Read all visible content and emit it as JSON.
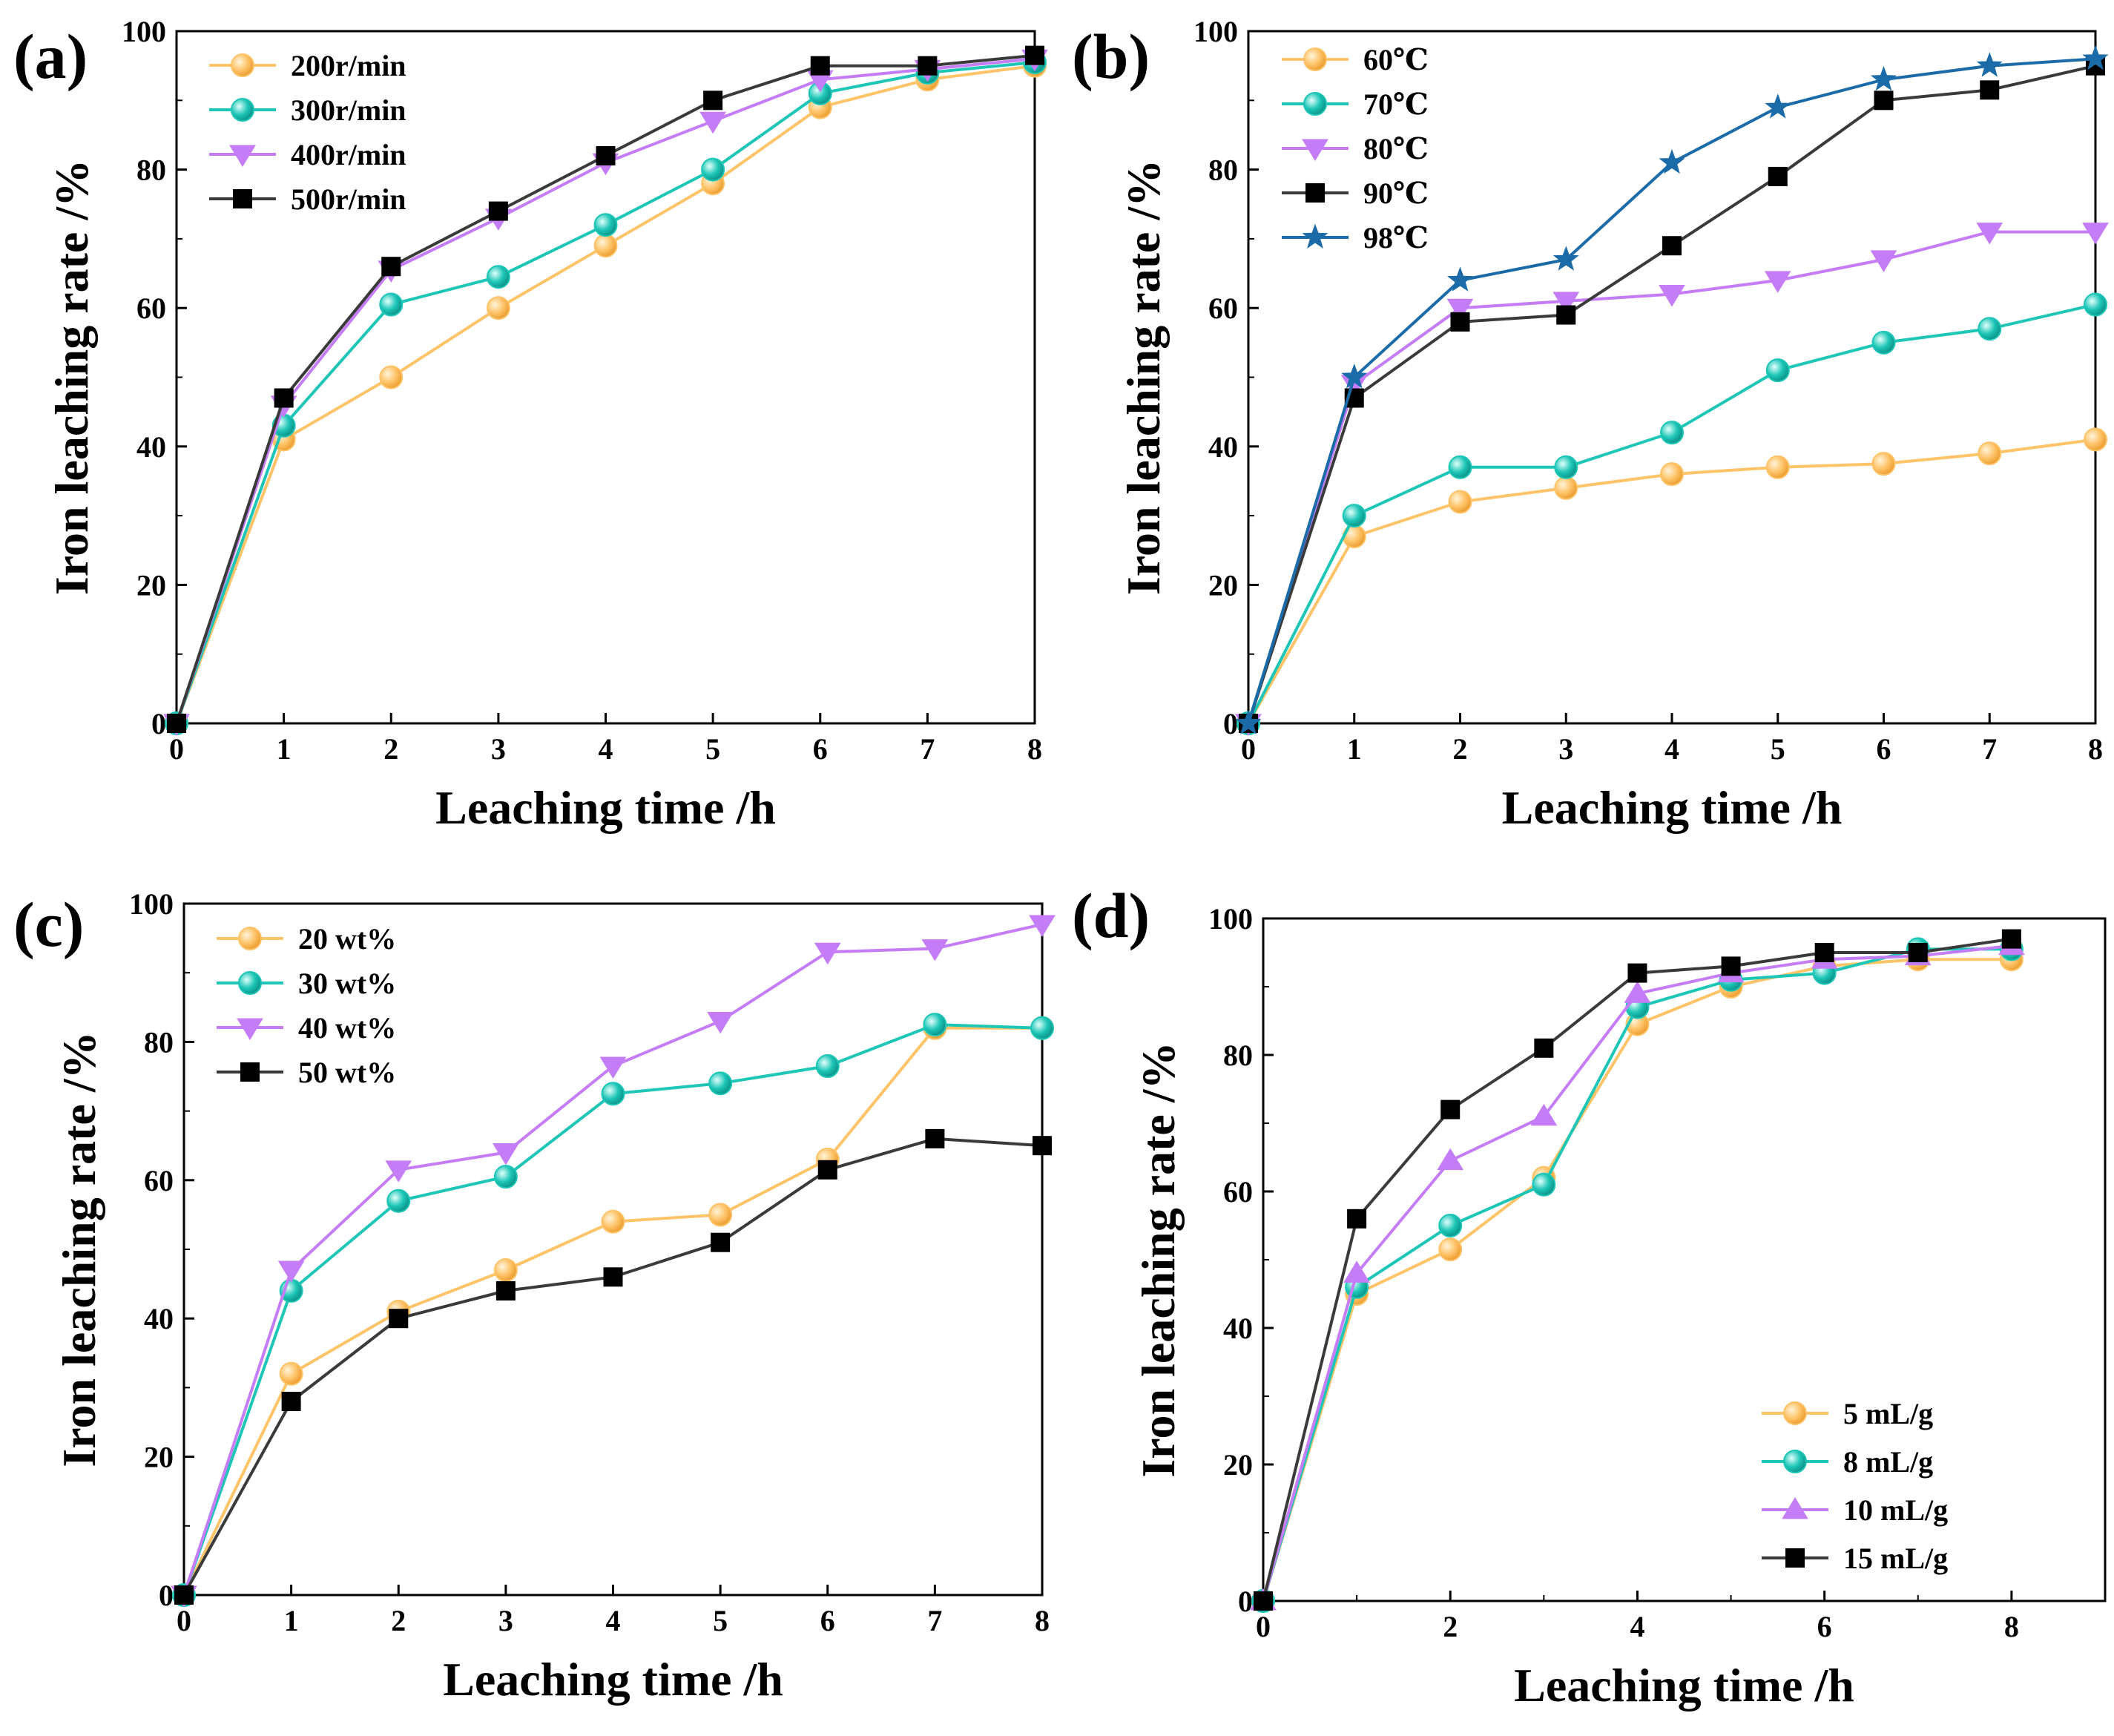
{
  "figure": {
    "panels": [
      "(a)",
      "(b)",
      "(c)",
      "(d)"
    ]
  },
  "colors": {
    "orange": "#FFC368",
    "teal": "#1DC6B7",
    "violet": "#C57CF7",
    "dark": "#3A3A3A",
    "blue": "#1B6BA8"
  },
  "chart_data": [
    {
      "type": "line",
      "panel_label": "(a)",
      "xlabel": "Leaching time /h",
      "ylabel": "Iron leaching rate /%",
      "xlim": [
        0,
        8
      ],
      "ylim": [
        0,
        100
      ],
      "xticks": [
        "0",
        "1",
        "2",
        "3",
        "4",
        "5",
        "6",
        "7",
        "8"
      ],
      "yticks": [
        "0",
        "20",
        "40",
        "60",
        "80",
        "100"
      ],
      "legend_position": "top-left",
      "x": [
        0,
        1,
        2,
        3,
        4,
        5,
        6,
        7,
        8
      ],
      "series": [
        {
          "name": "200r/min",
          "marker": "circle",
          "color": "#FFC368",
          "values": [
            0,
            41,
            50,
            60,
            69,
            78,
            89,
            93,
            95
          ]
        },
        {
          "name": "300r/min",
          "marker": "circle",
          "color": "#1DC6B7",
          "values": [
            0,
            43,
            60.5,
            64.5,
            72,
            80,
            91,
            94,
            95.5
          ]
        },
        {
          "name": "400r/min",
          "marker": "triangle-down",
          "color": "#C57CF7",
          "values": [
            0,
            46,
            65.5,
            73,
            81,
            87,
            93,
            94.5,
            96
          ]
        },
        {
          "name": "500r/min",
          "marker": "square",
          "color": "#3A3A3A",
          "values": [
            0,
            47,
            66,
            74,
            82,
            90,
            95,
            95,
            96.5
          ]
        }
      ]
    },
    {
      "type": "line",
      "panel_label": "(b)",
      "xlabel": "Leaching time /h",
      "ylabel": "Iron leaching rate /%",
      "xlim": [
        0,
        8
      ],
      "ylim": [
        0,
        100
      ],
      "xticks": [
        "0",
        "1",
        "2",
        "3",
        "4",
        "5",
        "6",
        "7",
        "8"
      ],
      "yticks": [
        "0",
        "20",
        "40",
        "60",
        "80",
        "100"
      ],
      "legend_position": "top-left",
      "x": [
        0,
        1,
        2,
        3,
        4,
        5,
        6,
        7,
        8
      ],
      "series": [
        {
          "name": "60℃",
          "marker": "circle",
          "color": "#FFC368",
          "values": [
            0,
            27,
            32,
            34,
            36,
            37,
            37.5,
            39,
            41
          ]
        },
        {
          "name": "70℃",
          "marker": "circle",
          "color": "#1DC6B7",
          "values": [
            0,
            30,
            37,
            37,
            42,
            51,
            55,
            57,
            60.5
          ]
        },
        {
          "name": "80℃",
          "marker": "triangle-down",
          "color": "#C57CF7",
          "values": [
            0,
            49,
            60,
            61,
            62,
            64,
            67,
            71,
            71
          ]
        },
        {
          "name": "90℃",
          "marker": "square",
          "color": "#3A3A3A",
          "values": [
            0,
            47,
            58,
            59,
            69,
            79,
            90,
            91.5,
            95
          ]
        },
        {
          "name": "98℃",
          "marker": "star",
          "color": "#1B6BA8",
          "values": [
            0,
            50,
            64,
            67,
            81,
            89,
            93,
            95,
            96
          ]
        }
      ]
    },
    {
      "type": "line",
      "panel_label": "(c)",
      "xlabel": "Leaching time /h",
      "ylabel": "Iron leaching rate /%",
      "xlim": [
        0,
        8
      ],
      "ylim": [
        0,
        100
      ],
      "xticks": [
        "0",
        "1",
        "2",
        "3",
        "4",
        "5",
        "6",
        "7",
        "8"
      ],
      "yticks": [
        "0",
        "20",
        "40",
        "60",
        "80",
        "100"
      ],
      "legend_position": "top-left",
      "x": [
        0,
        1,
        2,
        3,
        4,
        5,
        6,
        7,
        8
      ],
      "series": [
        {
          "name": "20 wt%",
          "marker": "circle",
          "color": "#FFC368",
          "values": [
            0,
            32,
            41,
            47,
            54,
            55,
            63,
            82,
            82
          ]
        },
        {
          "name": "30 wt%",
          "marker": "circle",
          "color": "#1DC6B7",
          "values": [
            0,
            44,
            57,
            60.5,
            72.5,
            74,
            76.5,
            82.5,
            82
          ]
        },
        {
          "name": "40 wt%",
          "marker": "triangle-down",
          "color": "#C57CF7",
          "values": [
            0,
            47,
            61.5,
            64,
            76.5,
            83,
            93,
            93.5,
            97
          ]
        },
        {
          "name": "50 wt%",
          "marker": "square",
          "color": "#3A3A3A",
          "values": [
            0,
            28,
            40,
            44,
            46,
            51,
            61.5,
            66,
            65
          ]
        }
      ]
    },
    {
      "type": "line",
      "panel_label": "(d)",
      "xlabel": "Leaching time /h",
      "ylabel": "Iron leaching rate /%",
      "xlim": [
        0,
        9
      ],
      "ylim": [
        0,
        100
      ],
      "xticks": [
        "0",
        "2",
        "4",
        "6",
        "8"
      ],
      "xtick_values": [
        0,
        2,
        4,
        6,
        8
      ],
      "yticks": [
        "0",
        "20",
        "40",
        "60",
        "80",
        "100"
      ],
      "legend_position": "bottom-right",
      "x": [
        0,
        1,
        2,
        3,
        4,
        5,
        6,
        7,
        8
      ],
      "series": [
        {
          "name": "5 mL/g",
          "marker": "circle",
          "color": "#FFC368",
          "values": [
            0,
            45,
            51.5,
            62,
            84.5,
            90,
            93,
            94,
            94
          ]
        },
        {
          "name": "8 mL/g",
          "marker": "circle",
          "color": "#1DC6B7",
          "values": [
            0,
            46,
            55,
            61,
            87,
            91,
            92,
            95.5,
            95.5
          ]
        },
        {
          "name": "10 mL/g",
          "marker": "triangle-up",
          "color": "#C57CF7",
          "values": [
            0,
            48,
            64.5,
            71,
            89,
            92,
            94,
            94.5,
            96
          ]
        },
        {
          "name": "15 mL/g",
          "marker": "square",
          "color": "#3A3A3A",
          "values": [
            0,
            56,
            72,
            81,
            92,
            93,
            95,
            95,
            97
          ]
        }
      ]
    }
  ]
}
